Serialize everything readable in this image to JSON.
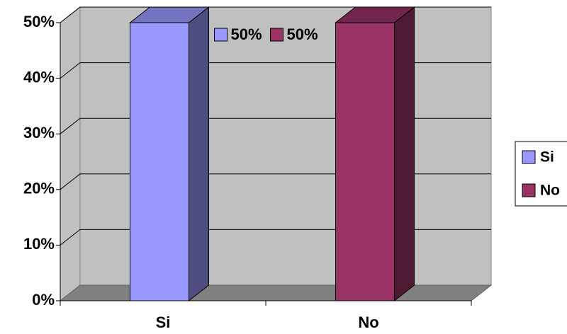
{
  "chart_data": {
    "type": "bar3d",
    "categories": [
      "Si",
      "No"
    ],
    "series": [
      {
        "name": "Si",
        "color": "#9999ff",
        "values": [
          50,
          null
        ],
        "value_labels": [
          "50%",
          null
        ]
      },
      {
        "name": "No",
        "color": "#993366",
        "values": [
          null,
          50
        ],
        "value_labels": [
          null,
          "50%"
        ]
      }
    ],
    "ylim": [
      0,
      50
    ],
    "yticks": [
      {
        "value": 0,
        "label": "0%"
      },
      {
        "value": 10,
        "label": "10%"
      },
      {
        "value": 20,
        "label": "20%"
      },
      {
        "value": 30,
        "label": "30%"
      },
      {
        "value": 40,
        "label": "40%"
      },
      {
        "value": 50,
        "label": "50%"
      }
    ],
    "grid": true,
    "legend": "right"
  }
}
